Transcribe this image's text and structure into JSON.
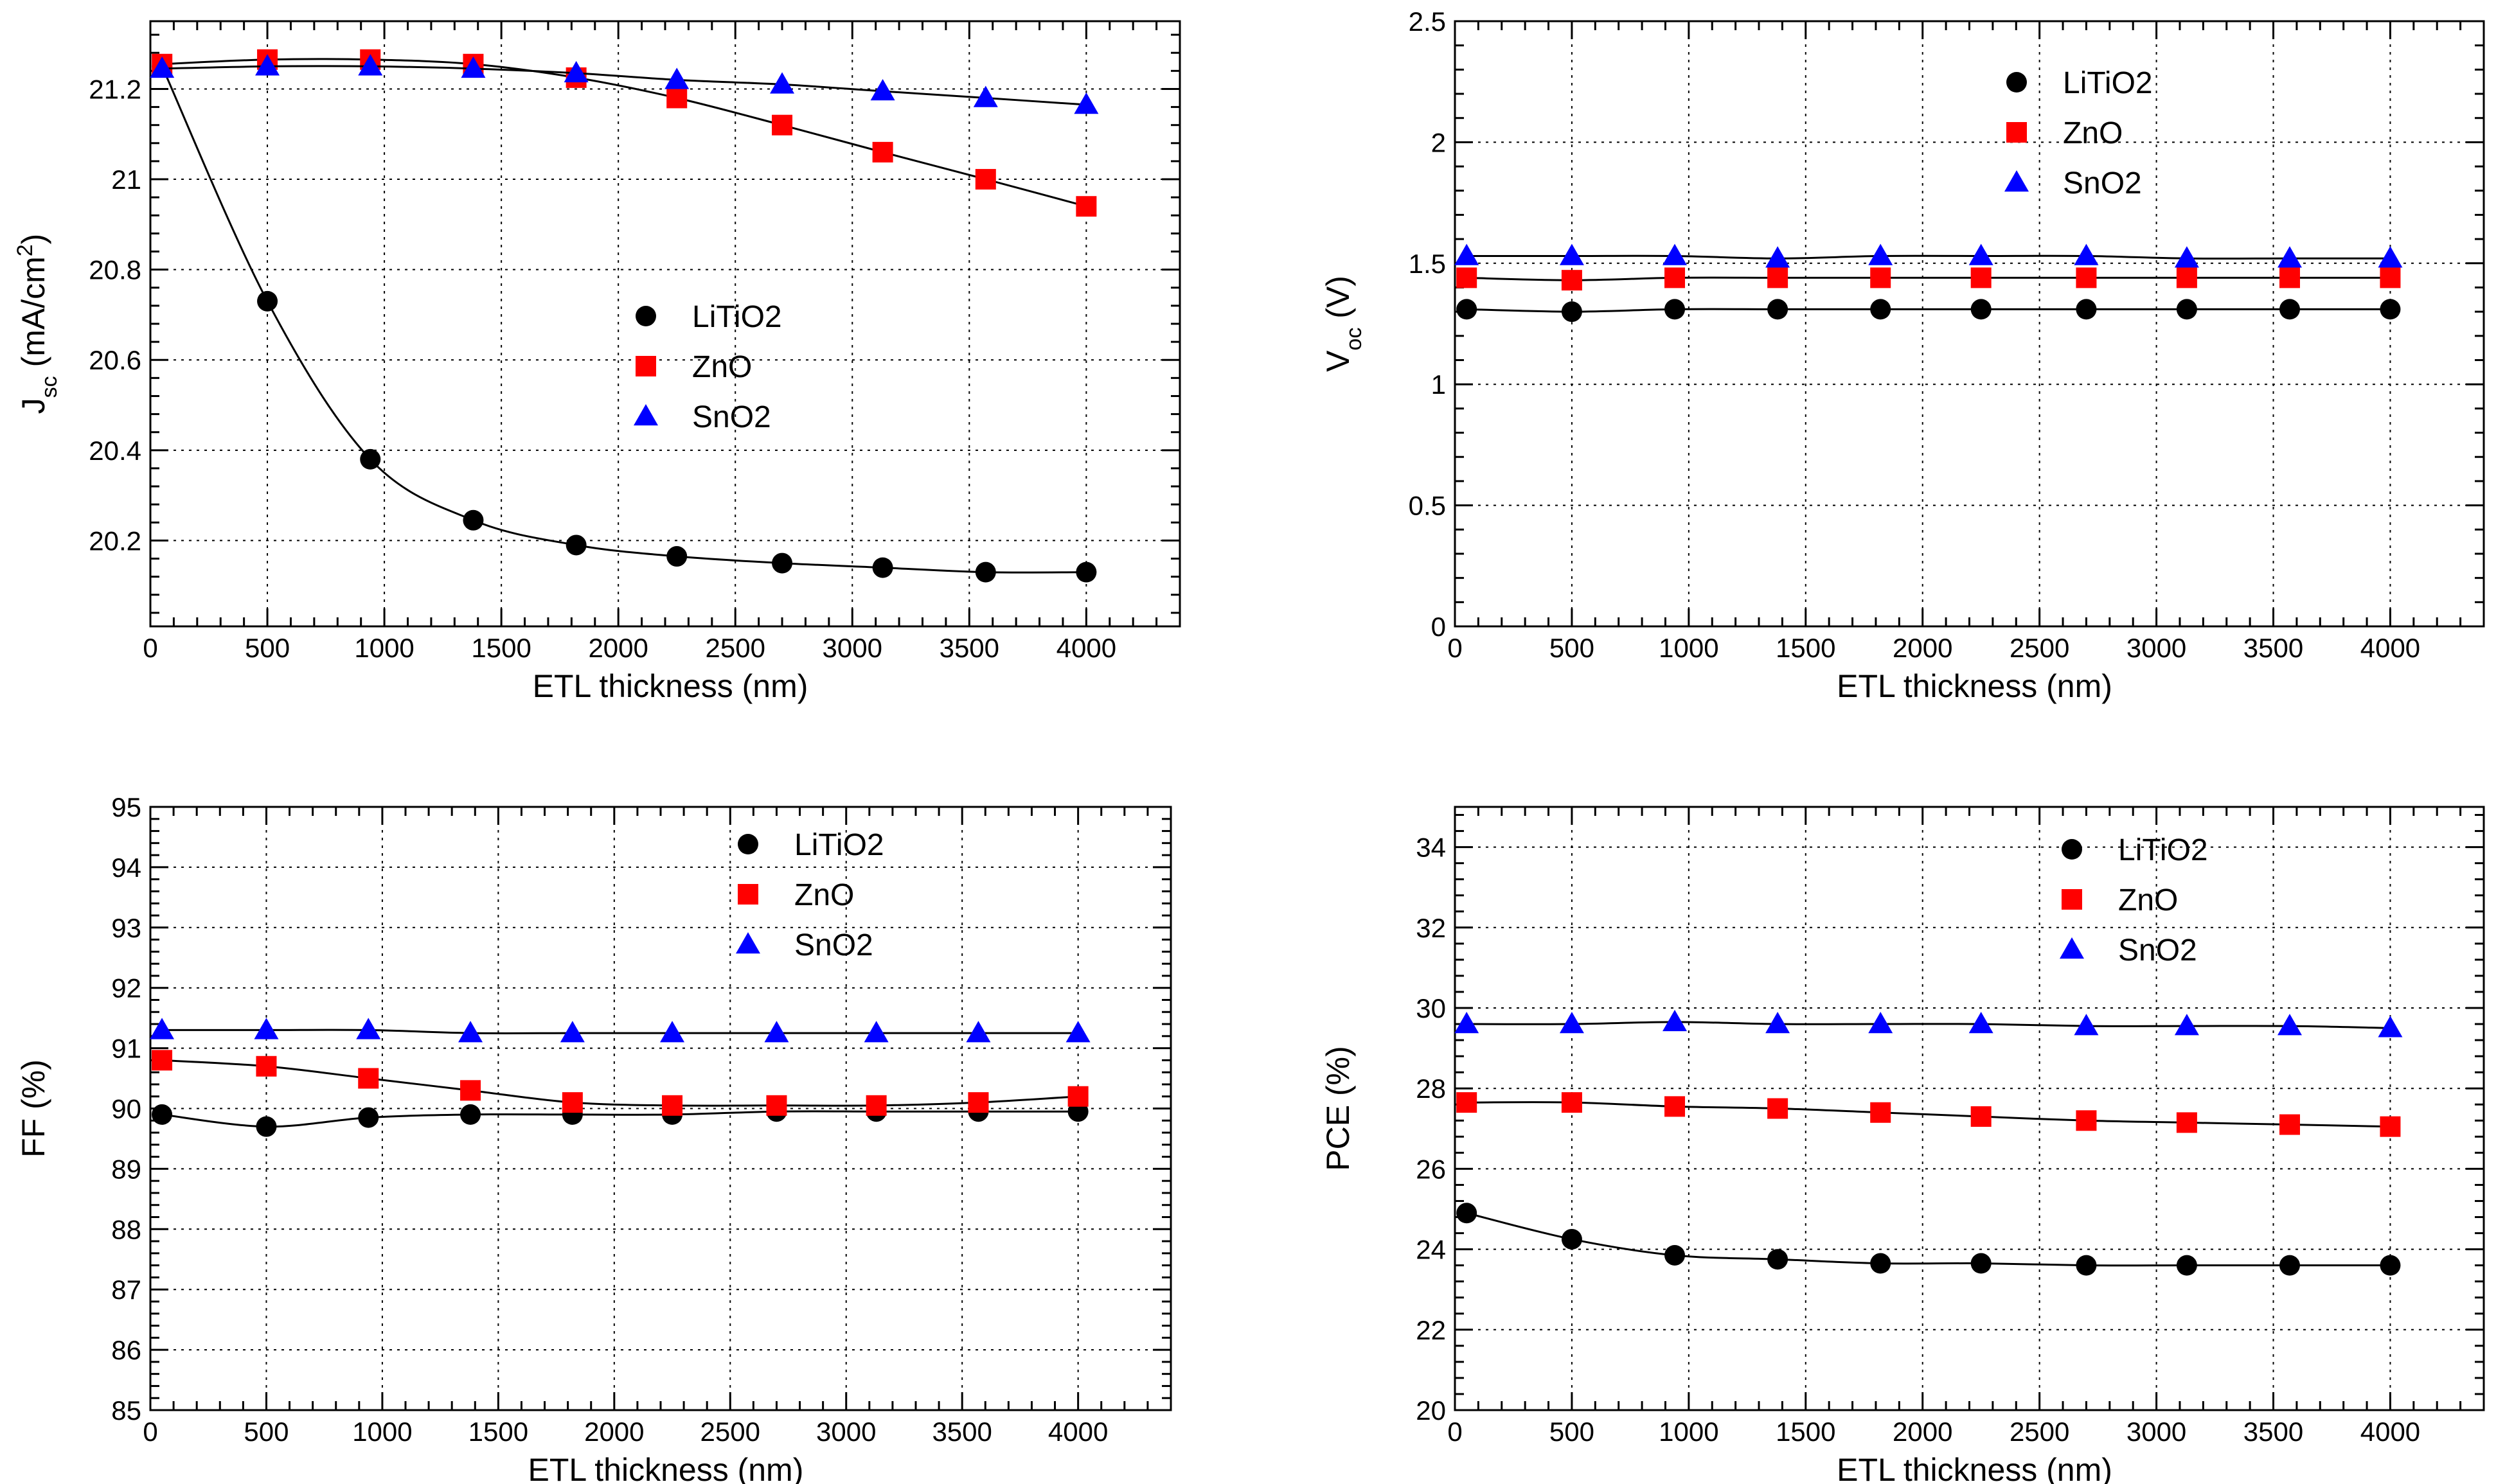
{
  "colors": {
    "LiTiO2": "#000000",
    "ZnO": "#ff0000",
    "SnO2": "#0000ff"
  },
  "chart_data": [
    {
      "id": "jsc",
      "type": "scatter",
      "xlabel": "ETL thickness (nm)",
      "ylabel_main": "J",
      "ylabel_sub": "sc",
      "ylabel_rest": " (mA/cm",
      "ylabel_sup": "2",
      "ylabel_end": ")",
      "xlim": [
        0,
        4400
      ],
      "ylim": [
        20.01,
        21.35
      ],
      "xticks": [
        "0",
        "500",
        "1000",
        "1500",
        "2000",
        "2500",
        "3000",
        "3500",
        "4000"
      ],
      "xtick_values": [
        0,
        500,
        1000,
        1500,
        2000,
        2500,
        3000,
        3500,
        4000
      ],
      "yticks": [
        "20.2",
        "20.4",
        "20.6",
        "20.8",
        "21",
        "21.2"
      ],
      "ytick_values": [
        20.2,
        20.4,
        20.6,
        20.8,
        21.0,
        21.2
      ],
      "legend_position": "center",
      "x": [
        50,
        500,
        940,
        1380,
        1820,
        2250,
        2700,
        3130,
        3570,
        4000
      ],
      "series": [
        {
          "name": "LiTiO2",
          "marker": "circle",
          "values": [
            21.25,
            20.73,
            20.38,
            20.245,
            20.19,
            20.165,
            20.15,
            20.14,
            20.13,
            20.13
          ]
        },
        {
          "name": "ZnO",
          "marker": "square",
          "values": [
            21.255,
            21.265,
            21.265,
            21.255,
            21.225,
            21.18,
            21.12,
            21.06,
            21.0,
            20.94
          ]
        },
        {
          "name": "SnO2",
          "marker": "triangle",
          "values": [
            21.245,
            21.25,
            21.25,
            21.245,
            21.235,
            21.22,
            21.21,
            21.195,
            21.18,
            21.165
          ]
        }
      ]
    },
    {
      "id": "voc",
      "type": "scatter",
      "xlabel": "ETL thickness (nm)",
      "ylabel_main": "V",
      "ylabel_sub": "oc",
      "ylabel_rest": " (V)",
      "ylabel_sup": "",
      "ylabel_end": "",
      "xlim": [
        0,
        4400
      ],
      "ylim": [
        0,
        2.5
      ],
      "xticks": [
        "0",
        "500",
        "1000",
        "1500",
        "2000",
        "2500",
        "3000",
        "3500",
        "4000"
      ],
      "xtick_values": [
        0,
        500,
        1000,
        1500,
        2000,
        2500,
        3000,
        3500,
        4000
      ],
      "yticks": [
        "0",
        "0.5",
        "1",
        "1.5",
        "2",
        "2.5"
      ],
      "ytick_values": [
        0,
        0.5,
        1.0,
        1.5,
        2.0,
        2.5
      ],
      "legend_position": "top-center",
      "x": [
        50,
        500,
        940,
        1380,
        1820,
        2250,
        2700,
        3130,
        3570,
        4000
      ],
      "series": [
        {
          "name": "LiTiO2",
          "marker": "circle",
          "values": [
            1.31,
            1.3,
            1.31,
            1.31,
            1.31,
            1.31,
            1.31,
            1.31,
            1.31,
            1.31
          ]
        },
        {
          "name": "ZnO",
          "marker": "square",
          "values": [
            1.44,
            1.43,
            1.44,
            1.44,
            1.44,
            1.44,
            1.44,
            1.44,
            1.44,
            1.44
          ]
        },
        {
          "name": "SnO2",
          "marker": "triangle",
          "values": [
            1.53,
            1.53,
            1.53,
            1.52,
            1.53,
            1.53,
            1.53,
            1.52,
            1.52,
            1.52
          ]
        }
      ]
    },
    {
      "id": "ff",
      "type": "scatter",
      "xlabel": "ETL thickness (nm)",
      "ylabel_main": "FF (%)",
      "ylabel_sub": "",
      "ylabel_rest": "",
      "ylabel_sup": "",
      "ylabel_end": "",
      "xlim": [
        0,
        4400
      ],
      "ylim": [
        85,
        95
      ],
      "xticks": [
        "0",
        "500",
        "1000",
        "1500",
        "2000",
        "2500",
        "3000",
        "3500",
        "4000"
      ],
      "xtick_values": [
        0,
        500,
        1000,
        1500,
        2000,
        2500,
        3000,
        3500,
        4000
      ],
      "yticks": [
        "85",
        "86",
        "87",
        "88",
        "89",
        "90",
        "91",
        "92",
        "93",
        "94",
        "95"
      ],
      "ytick_values": [
        85,
        86,
        87,
        88,
        89,
        90,
        91,
        92,
        93,
        94,
        95
      ],
      "legend_position": "top-center",
      "x": [
        50,
        500,
        940,
        1380,
        1820,
        2250,
        2700,
        3130,
        3570,
        4000
      ],
      "series": [
        {
          "name": "LiTiO2",
          "marker": "circle",
          "values": [
            89.9,
            89.7,
            89.85,
            89.9,
            89.9,
            89.9,
            89.95,
            89.95,
            89.95,
            89.95
          ]
        },
        {
          "name": "ZnO",
          "marker": "square",
          "values": [
            90.8,
            90.7,
            90.5,
            90.3,
            90.1,
            90.05,
            90.05,
            90.05,
            90.1,
            90.2
          ]
        },
        {
          "name": "SnO2",
          "marker": "triangle",
          "values": [
            91.3,
            91.3,
            91.3,
            91.25,
            91.25,
            91.25,
            91.25,
            91.25,
            91.25,
            91.25
          ]
        }
      ]
    },
    {
      "id": "pce",
      "type": "scatter",
      "xlabel": "ETL thickness (nm)",
      "ylabel_main": "PCE (%)",
      "ylabel_sub": "",
      "ylabel_rest": "",
      "ylabel_sup": "",
      "ylabel_end": "",
      "xlim": [
        0,
        4400
      ],
      "ylim": [
        20,
        35
      ],
      "xticks": [
        "0",
        "500",
        "1000",
        "1500",
        "2000",
        "2500",
        "3000",
        "3500",
        "4000"
      ],
      "xtick_values": [
        0,
        500,
        1000,
        1500,
        2000,
        2500,
        3000,
        3500,
        4000
      ],
      "yticks": [
        "20",
        "22",
        "24",
        "26",
        "28",
        "30",
        "32",
        "34"
      ],
      "ytick_values": [
        20,
        22,
        24,
        26,
        28,
        30,
        32,
        34
      ],
      "legend_position": "top-center",
      "x": [
        50,
        500,
        940,
        1380,
        1820,
        2250,
        2700,
        3130,
        3570,
        4000
      ],
      "series": [
        {
          "name": "LiTiO2",
          "marker": "circle",
          "values": [
            24.9,
            24.25,
            23.85,
            23.75,
            23.65,
            23.65,
            23.6,
            23.6,
            23.6,
            23.6
          ]
        },
        {
          "name": "ZnO",
          "marker": "square",
          "values": [
            27.65,
            27.65,
            27.55,
            27.5,
            27.4,
            27.3,
            27.2,
            27.15,
            27.1,
            27.05
          ]
        },
        {
          "name": "SnO2",
          "marker": "triangle",
          "values": [
            29.6,
            29.6,
            29.65,
            29.6,
            29.6,
            29.6,
            29.55,
            29.55,
            29.55,
            29.5
          ]
        }
      ]
    }
  ]
}
